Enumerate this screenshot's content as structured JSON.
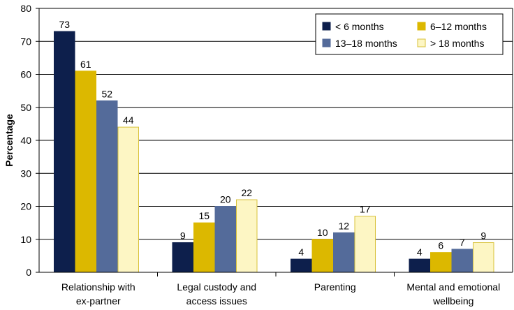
{
  "chart_data": {
    "type": "bar",
    "title": "",
    "xlabel": "",
    "ylabel": "Percentage",
    "ylim": [
      0,
      80
    ],
    "yticks": [
      0,
      10,
      20,
      30,
      40,
      50,
      60,
      70,
      80
    ],
    "grid": true,
    "legend_position": "top-right",
    "categories": [
      [
        "Relationship with",
        "ex-partner"
      ],
      [
        "Legal custody and",
        "access issues"
      ],
      [
        "Parenting"
      ],
      [
        "Mental and emotional",
        "wellbeing"
      ]
    ],
    "series": [
      {
        "name": "< 6 months",
        "color": "#0d1f4c",
        "border": "#0d1f4c",
        "values": [
          73,
          9,
          4,
          4
        ]
      },
      {
        "name": "6–12 months",
        "color": "#dcb800",
        "border": "#dcb800",
        "values": [
          61,
          15,
          10,
          6
        ]
      },
      {
        "name": "13–18 months",
        "color": "#546b9a",
        "border": "#546b9a",
        "values": [
          52,
          20,
          12,
          7
        ]
      },
      {
        "name": "> 18 months",
        "color": "#fdf6c4",
        "border": "#d8c13a",
        "values": [
          44,
          22,
          17,
          9
        ]
      }
    ]
  }
}
